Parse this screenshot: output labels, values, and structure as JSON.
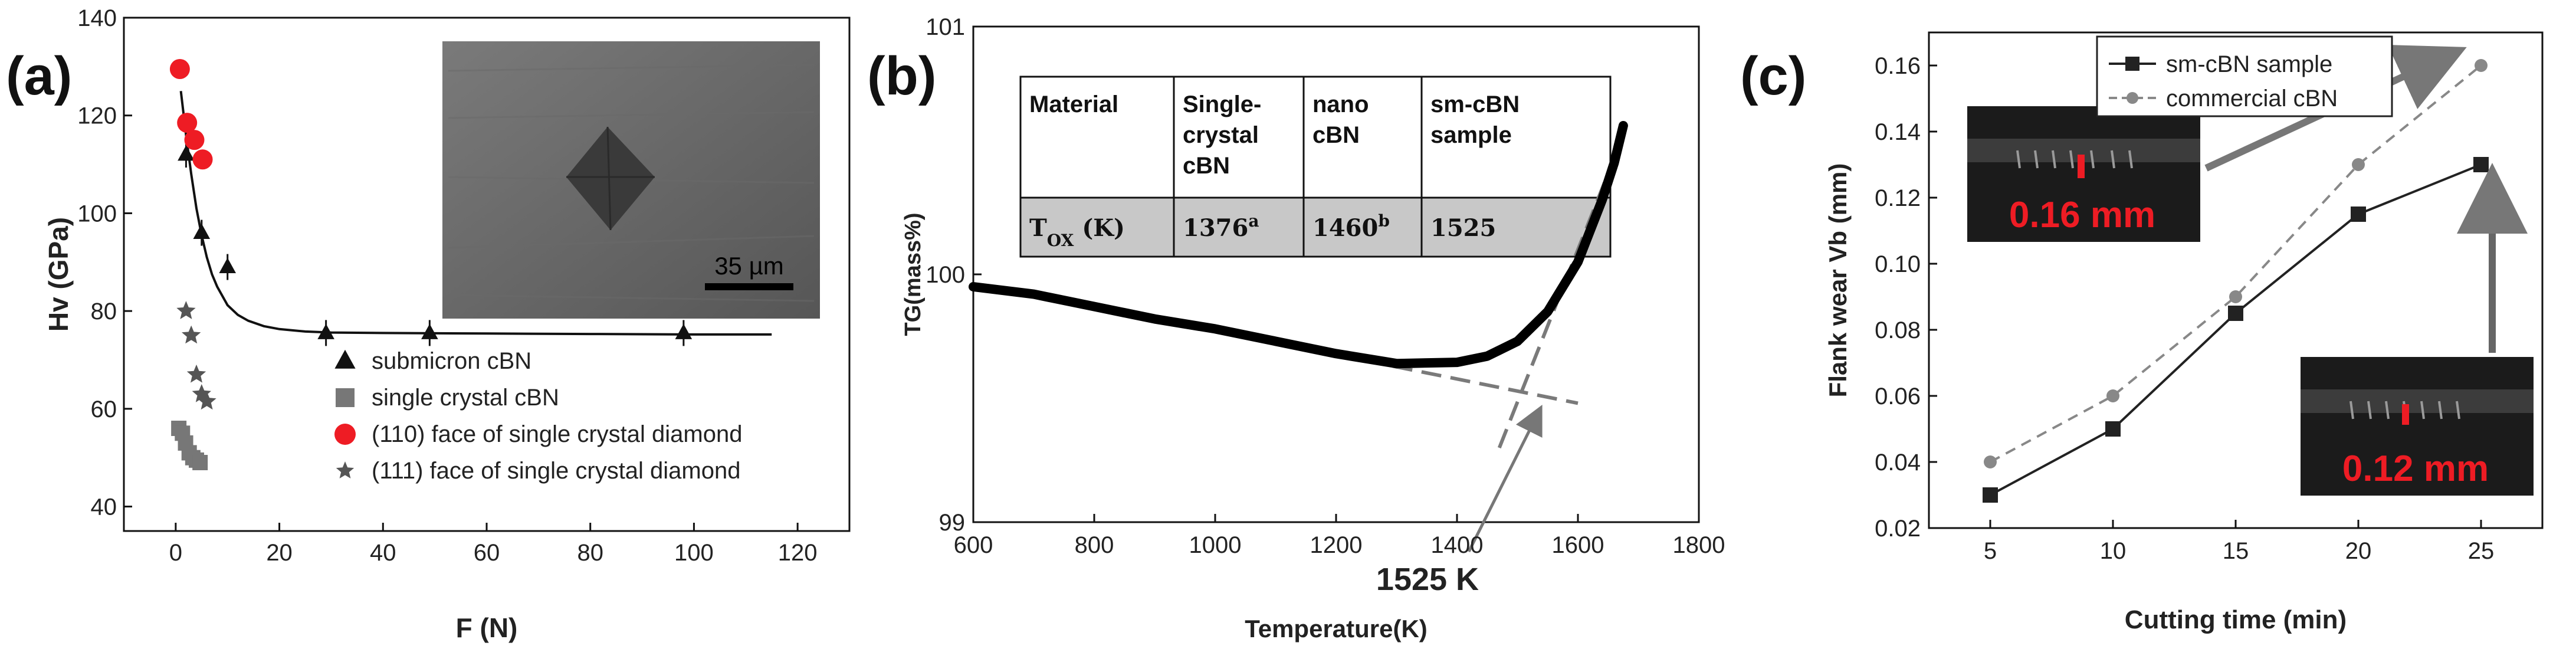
{
  "chart_data": [
    {
      "panel": "(a)",
      "type": "scatter",
      "xlabel": "F (N)",
      "ylabel": "Hv (GPa)",
      "xlim": [
        -10,
        130
      ],
      "ylim": [
        35,
        140
      ],
      "xticks": [
        "0",
        "20",
        "40",
        "60",
        "80",
        "100",
        "120"
      ],
      "yticks": [
        "40",
        "60",
        "80",
        "100",
        "120",
        "140"
      ],
      "inset_scale": "35 µm",
      "series": [
        {
          "name": "submicron cBN",
          "marker": "triangle",
          "color": "#111111",
          "x": [
            2,
            5,
            10,
            29,
            49,
            98
          ],
          "y": [
            112,
            96,
            89,
            75.5,
            75.5,
            75.5
          ]
        },
        {
          "name": "single crystal cBN",
          "marker": "square",
          "color": "#777777",
          "x": [
            0.6,
            1.3,
            1.9,
            2.6,
            3.3,
            4.0,
            4.7
          ],
          "y": [
            56,
            55,
            53,
            51,
            50,
            49.5,
            49
          ]
        },
        {
          "name": "(110) face of  single crystal diamond",
          "marker": "circle",
          "color": "#ee1c24",
          "x": [
            0.8,
            2.2,
            3.6,
            5.2
          ],
          "y": [
            129.5,
            118.5,
            115,
            111
          ]
        },
        {
          "name": "(111) face of  single crystal diamond",
          "marker": "star",
          "color": "#555555",
          "x": [
            2,
            3,
            4,
            5,
            6
          ],
          "y": [
            80,
            75,
            67,
            63,
            61.5
          ]
        }
      ],
      "fit_curve": {
        "x": [
          1,
          2,
          3,
          4,
          5,
          6,
          7,
          8,
          10,
          12,
          14,
          17,
          20,
          25,
          30,
          40,
          60,
          80,
          100,
          115
        ],
        "y": [
          125,
          116,
          108,
          101,
          95.5,
          91,
          87.5,
          85,
          81.2,
          79.2,
          78,
          76.9,
          76.3,
          75.8,
          75.6,
          75.5,
          75.4,
          75.3,
          75.2,
          75.2
        ]
      }
    },
    {
      "panel": "(b)",
      "type": "line",
      "xlabel": "Temperature(K)",
      "ylabel": "TG(mass%)",
      "xlim": [
        600,
        1800
      ],
      "ylim": [
        99,
        101
      ],
      "xticks": [
        "600",
        "800",
        "1000",
        "1200",
        "1400",
        "1600",
        "1800"
      ],
      "yticks": [
        "99",
        "100",
        "101"
      ],
      "annotation": "1525 K",
      "series": [
        {
          "name": "TG",
          "color": "#000000",
          "x": [
            600,
            700,
            800,
            900,
            1000,
            1100,
            1200,
            1300,
            1400,
            1450,
            1500,
            1550,
            1600,
            1640,
            1660,
            1675
          ],
          "y": [
            99.95,
            99.92,
            99.87,
            99.82,
            99.78,
            99.73,
            99.68,
            99.64,
            99.645,
            99.67,
            99.73,
            99.85,
            100.05,
            100.3,
            100.45,
            100.6
          ]
        }
      ],
      "tangents": [
        {
          "x": [
            1150,
            1600
          ],
          "y": [
            99.7,
            99.48
          ]
        },
        {
          "x": [
            1470,
            1665
          ],
          "y": [
            99.3,
            100.5
          ]
        }
      ],
      "table": {
        "headers": [
          "Material",
          "Single-\ncrystal\ncBN",
          "nano\ncBN",
          "sm-cBN\nsample"
        ],
        "row_label": "T_OX (K)",
        "values": [
          "1376",
          "1460",
          "1525"
        ],
        "superscripts": [
          "a",
          "b",
          ""
        ]
      }
    },
    {
      "panel": "(c)",
      "type": "line",
      "xlabel": "Cutting time (min)",
      "ylabel": "Flank wear Vb (mm)",
      "xlim": [
        2.5,
        27.5
      ],
      "ylim": [
        0.02,
        0.17
      ],
      "xticks": [
        "5",
        "10",
        "15",
        "20",
        "25"
      ],
      "yticks": [
        "0.02",
        "0.04",
        "0.06",
        "0.08",
        "0.10",
        "0.12",
        "0.14",
        "0.16"
      ],
      "categories": [
        5,
        10,
        15,
        20,
        25
      ],
      "series": [
        {
          "name": "sm-cBN sample",
          "color": "#222222",
          "marker": "square",
          "dash": false,
          "values": [
            0.03,
            0.05,
            0.085,
            0.115,
            0.13
          ]
        },
        {
          "name": "commercial cBN",
          "color": "#888888",
          "marker": "circle",
          "dash": true,
          "values": [
            0.04,
            0.06,
            0.09,
            0.13,
            0.16
          ]
        }
      ],
      "photo_labels": [
        "0.16 mm",
        "0.12 mm"
      ]
    }
  ]
}
